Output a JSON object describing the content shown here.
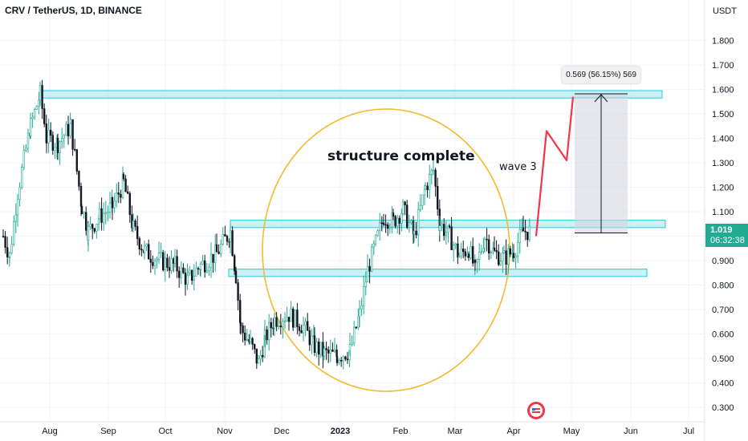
{
  "header": {
    "title": "CRV / TetherUS, 1D, BINANCE"
  },
  "price_axis": {
    "unit": "USDT"
  },
  "last_price": {
    "value": "1.019",
    "countdown": "06:32:38"
  },
  "annotations": {
    "structure_label": "structure complete",
    "wave_label": "wave 3",
    "measure_label": "0.569 (56.15%) 569"
  },
  "colors": {
    "candle_up": "#22ab94",
    "candle_dark": "#131722",
    "zone_fill": "#b2ebf2",
    "zone_border": "#26c6da",
    "circle": "#f5b82e",
    "projection": "#f23645",
    "measure_fill": "#d1d4dc"
  },
  "chart_data": {
    "type": "candlestick",
    "title": "CRV / TetherUS, 1D, BINANCE",
    "ylabel": "USDT",
    "ylim": [
      0.26,
      1.94
    ],
    "y_ticks": [
      "0.300",
      "0.400",
      "0.500",
      "0.600",
      "0.700",
      "0.800",
      "0.900",
      "1.000",
      "1.100",
      "1.200",
      "1.300",
      "1.400",
      "1.500",
      "1.600",
      "1.700",
      "1.800"
    ],
    "x_ticks": [
      "Aug",
      "Sep",
      "Oct",
      "Nov",
      "Dec",
      "2023",
      "Feb",
      "Mar",
      "Apr",
      "May",
      "Jun",
      "Jul"
    ],
    "approx_closes": [
      {
        "date": "Jul 2022",
        "value": 1.0
      },
      {
        "date": "late Jul 2022",
        "value": 1.58
      },
      {
        "date": "Aug 2022",
        "value": 1.35
      },
      {
        "date": "Sep 2022",
        "value": 1.05
      },
      {
        "date": "mid Sep 2022",
        "value": 1.15
      },
      {
        "date": "Oct 2022",
        "value": 0.85
      },
      {
        "date": "early Nov 2022",
        "value": 1.02
      },
      {
        "date": "mid Nov 2022",
        "value": 0.55
      },
      {
        "date": "late Nov 2022",
        "value": 0.45
      },
      {
        "date": "Dec 2022",
        "value": 0.67
      },
      {
        "date": "late Dec 2022",
        "value": 0.52
      },
      {
        "date": "mid Jan 2023",
        "value": 0.75
      },
      {
        "date": "late Jan 2023",
        "value": 1.1
      },
      {
        "date": "mid Feb 2023",
        "value": 1.28
      },
      {
        "date": "Mar 2023",
        "value": 0.9
      },
      {
        "date": "Apr 2023",
        "value": 1.019
      }
    ],
    "zones": [
      {
        "low": 1.565,
        "high": 1.595
      },
      {
        "low": 1.035,
        "high": 1.065
      },
      {
        "low": 0.835,
        "high": 0.865
      }
    ],
    "projection": [
      {
        "date": "Apr 2023",
        "value": 1.0
      },
      {
        "date": "mid Apr 2023",
        "value": 1.43
      },
      {
        "date": "late Apr 2023",
        "value": 1.31
      },
      {
        "date": "May 2023",
        "value": 1.57
      }
    ],
    "measure": {
      "from": 1.013,
      "to": 1.582,
      "change": 0.569,
      "change_pct": 56.15
    }
  }
}
